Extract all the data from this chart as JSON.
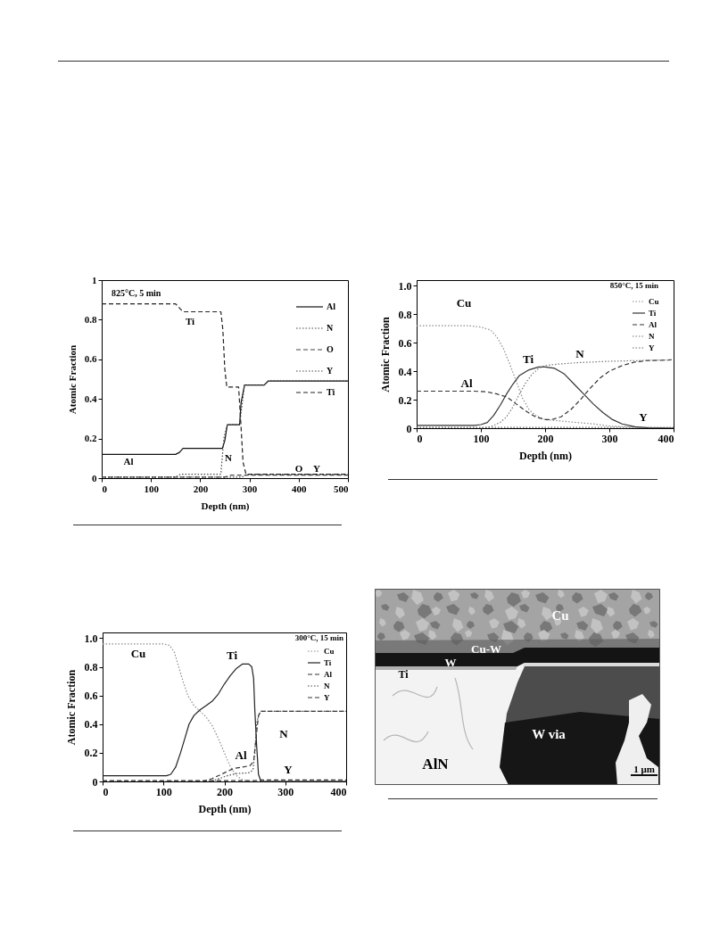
{
  "chart_data": [
    {
      "type": "line",
      "title": "825°C, 5 min",
      "xlabel": "Depth (nm)",
      "ylabel": "Atomic Fraction",
      "xlim": [
        0,
        500
      ],
      "ylim": [
        0,
        1
      ],
      "xticks": [
        0,
        100,
        200,
        300,
        400,
        500
      ],
      "yticks": [
        0,
        0.2,
        0.4,
        0.6,
        0.8,
        1
      ],
      "legend": "top right",
      "series": [
        {
          "name": "Al",
          "color": "#111111",
          "line_style": "solid",
          "x": [
            0,
            150,
            158,
            165,
            245,
            250,
            255,
            280,
            283,
            290,
            330,
            338,
            500
          ],
          "values": [
            0.12,
            0.12,
            0.13,
            0.15,
            0.15,
            0.19,
            0.27,
            0.27,
            0.38,
            0.47,
            0.47,
            0.49,
            0.49
          ]
        },
        {
          "name": "N",
          "color": "#444444",
          "line_style": "dotted",
          "x": [
            0,
            150,
            160,
            242,
            248,
            255,
            280,
            290,
            330,
            338,
            500
          ],
          "values": [
            0.005,
            0.005,
            0.02,
            0.02,
            0.2,
            0.27,
            0.27,
            0.47,
            0.47,
            0.49,
            0.49
          ]
        },
        {
          "name": "O",
          "color": "#444444",
          "line_style": "dashed",
          "x": [
            0,
            250,
            262,
            500
          ],
          "values": [
            0.005,
            0.005,
            0.015,
            0.015
          ]
        },
        {
          "name": "Y",
          "color": "#444444",
          "line_style": "dotted",
          "x": [
            0,
            285,
            295,
            500
          ],
          "values": [
            0.005,
            0.005,
            0.02,
            0.02
          ]
        },
        {
          "name": "Ti",
          "color": "#222222",
          "line_style": "dashed",
          "x": [
            0,
            150,
            165,
            242,
            246,
            250,
            254,
            278,
            282,
            287,
            293,
            500
          ],
          "values": [
            0.88,
            0.88,
            0.84,
            0.84,
            0.75,
            0.55,
            0.46,
            0.46,
            0.3,
            0.08,
            0.02,
            0.02
          ]
        }
      ],
      "annotations": [
        "Ti",
        "Al",
        "N",
        "O",
        "Y"
      ]
    },
    {
      "type": "line",
      "title": "850°C, 15 min",
      "xlabel": "Depth (nm)",
      "ylabel": "Atomic Fraction",
      "xlim": [
        0,
        400
      ],
      "ylim": [
        0,
        1.04
      ],
      "xticks": [
        0,
        100,
        200,
        300,
        400
      ],
      "yticks": [
        0,
        0.2,
        0.4,
        0.6,
        0.8,
        {
          "value": 1,
          "label": "1.0"
        }
      ],
      "legend": "top right",
      "series": [
        {
          "name": "Cu",
          "color": "#8c8c8c",
          "line_style": "dotted",
          "x": [
            0,
            80,
            100,
            115,
            125,
            135,
            145,
            155,
            165,
            175,
            185,
            200,
            225,
            250,
            275,
            300,
            350,
            400
          ],
          "values": [
            0.72,
            0.72,
            0.71,
            0.69,
            0.64,
            0.56,
            0.45,
            0.33,
            0.21,
            0.13,
            0.09,
            0.06,
            0.05,
            0.04,
            0.03,
            0.015,
            0.005,
            0
          ]
        },
        {
          "name": "Ti",
          "color": "#333333",
          "line_style": "solid",
          "x": [
            0,
            90,
            100,
            110,
            120,
            130,
            140,
            150,
            160,
            175,
            190,
            200,
            215,
            230,
            245,
            260,
            275,
            290,
            305,
            320,
            340,
            360,
            400
          ],
          "values": [
            0.02,
            0.02,
            0.025,
            0.04,
            0.09,
            0.16,
            0.24,
            0.31,
            0.37,
            0.41,
            0.43,
            0.43,
            0.42,
            0.38,
            0.31,
            0.24,
            0.17,
            0.11,
            0.06,
            0.03,
            0.01,
            0.003,
            0
          ]
        },
        {
          "name": "Al",
          "color": "#333333",
          "line_style": "dashed",
          "x": [
            0,
            90,
            110,
            125,
            140,
            155,
            170,
            185,
            200,
            210,
            225,
            240,
            255,
            270,
            285,
            300,
            320,
            340,
            360,
            400
          ],
          "values": [
            0.26,
            0.26,
            0.255,
            0.24,
            0.22,
            0.17,
            0.12,
            0.08,
            0.06,
            0.06,
            0.08,
            0.13,
            0.2,
            0.28,
            0.35,
            0.4,
            0.44,
            0.465,
            0.475,
            0.48
          ]
        },
        {
          "name": "N",
          "color": "#777777",
          "line_style": "dotted",
          "x": [
            0,
            100,
            115,
            130,
            140,
            150,
            160,
            170,
            180,
            190,
            200,
            220,
            250,
            300,
            350,
            400
          ],
          "values": [
            0,
            0,
            0.01,
            0.04,
            0.08,
            0.15,
            0.24,
            0.32,
            0.38,
            0.42,
            0.44,
            0.45,
            0.46,
            0.47,
            0.475,
            0.48
          ]
        },
        {
          "name": "Y",
          "color": "#666666",
          "line_style": "dotted",
          "x": [
            0,
            400
          ],
          "values": [
            0.005,
            0.005
          ]
        }
      ],
      "annotations": [
        "Cu",
        "Ti",
        "N",
        "Al",
        "Y"
      ]
    },
    {
      "type": "line",
      "title": "300°C, 15 min",
      "xlabel": "Depth (nm)",
      "ylabel": "Atomic Fraction",
      "xlim": [
        0,
        400
      ],
      "ylim": [
        0,
        1.04
      ],
      "xticks": [
        0,
        100,
        200,
        300,
        400
      ],
      "yticks": [
        0,
        0.2,
        0.4,
        0.6,
        0.8,
        {
          "value": 1,
          "label": "1.0"
        }
      ],
      "legend": "top right",
      "series": [
        {
          "name": "Cu",
          "color": "#8c8c8c",
          "line_style": "dotted",
          "x": [
            0,
            100,
            110,
            118,
            125,
            132,
            140,
            150,
            160,
            170,
            180,
            190,
            200,
            210,
            220,
            230,
            240,
            400
          ],
          "values": [
            0.96,
            0.96,
            0.95,
            0.9,
            0.8,
            0.7,
            0.6,
            0.53,
            0.49,
            0.45,
            0.39,
            0.3,
            0.2,
            0.1,
            0.04,
            0.01,
            0,
            0
          ]
        },
        {
          "name": "Ti",
          "color": "#222222",
          "line_style": "solid",
          "x": [
            0,
            105,
            112,
            120,
            128,
            135,
            142,
            150,
            160,
            170,
            180,
            190,
            200,
            210,
            220,
            230,
            240,
            245,
            248,
            250,
            253,
            256,
            260,
            400
          ],
          "values": [
            0.04,
            0.04,
            0.05,
            0.1,
            0.2,
            0.3,
            0.4,
            0.46,
            0.5,
            0.53,
            0.56,
            0.61,
            0.68,
            0.74,
            0.79,
            0.82,
            0.82,
            0.8,
            0.72,
            0.5,
            0.25,
            0.05,
            0,
            0
          ]
        },
        {
          "name": "Al",
          "color": "#333333",
          "line_style": "dashed",
          "x": [
            0,
            165,
            180,
            200,
            215,
            230,
            242,
            248,
            252,
            256,
            260,
            400
          ],
          "values": [
            0,
            0,
            0.02,
            0.06,
            0.09,
            0.1,
            0.11,
            0.14,
            0.3,
            0.46,
            0.49,
            0.49
          ]
        },
        {
          "name": "N",
          "color": "#444444",
          "line_style": "dotted",
          "x": [
            0,
            170,
            185,
            205,
            220,
            240,
            247,
            250,
            253,
            256,
            260,
            400
          ],
          "values": [
            0,
            0,
            0.01,
            0.04,
            0.055,
            0.06,
            0.08,
            0.2,
            0.4,
            0.46,
            0.49,
            0.49
          ]
        },
        {
          "name": "Y",
          "color": "#333333",
          "line_style": "dashed",
          "x": [
            0,
            250,
            260,
            400
          ],
          "values": [
            0.005,
            0.005,
            0.01,
            0.01
          ]
        }
      ],
      "annotations": [
        "Cu",
        "Ti",
        "Al",
        "N",
        "Y"
      ]
    },
    {
      "type": "other",
      "annotations": [
        "Cu",
        "Cu-W",
        "W",
        "Ti",
        "AlN",
        "W via",
        "1 μm"
      ]
    }
  ]
}
